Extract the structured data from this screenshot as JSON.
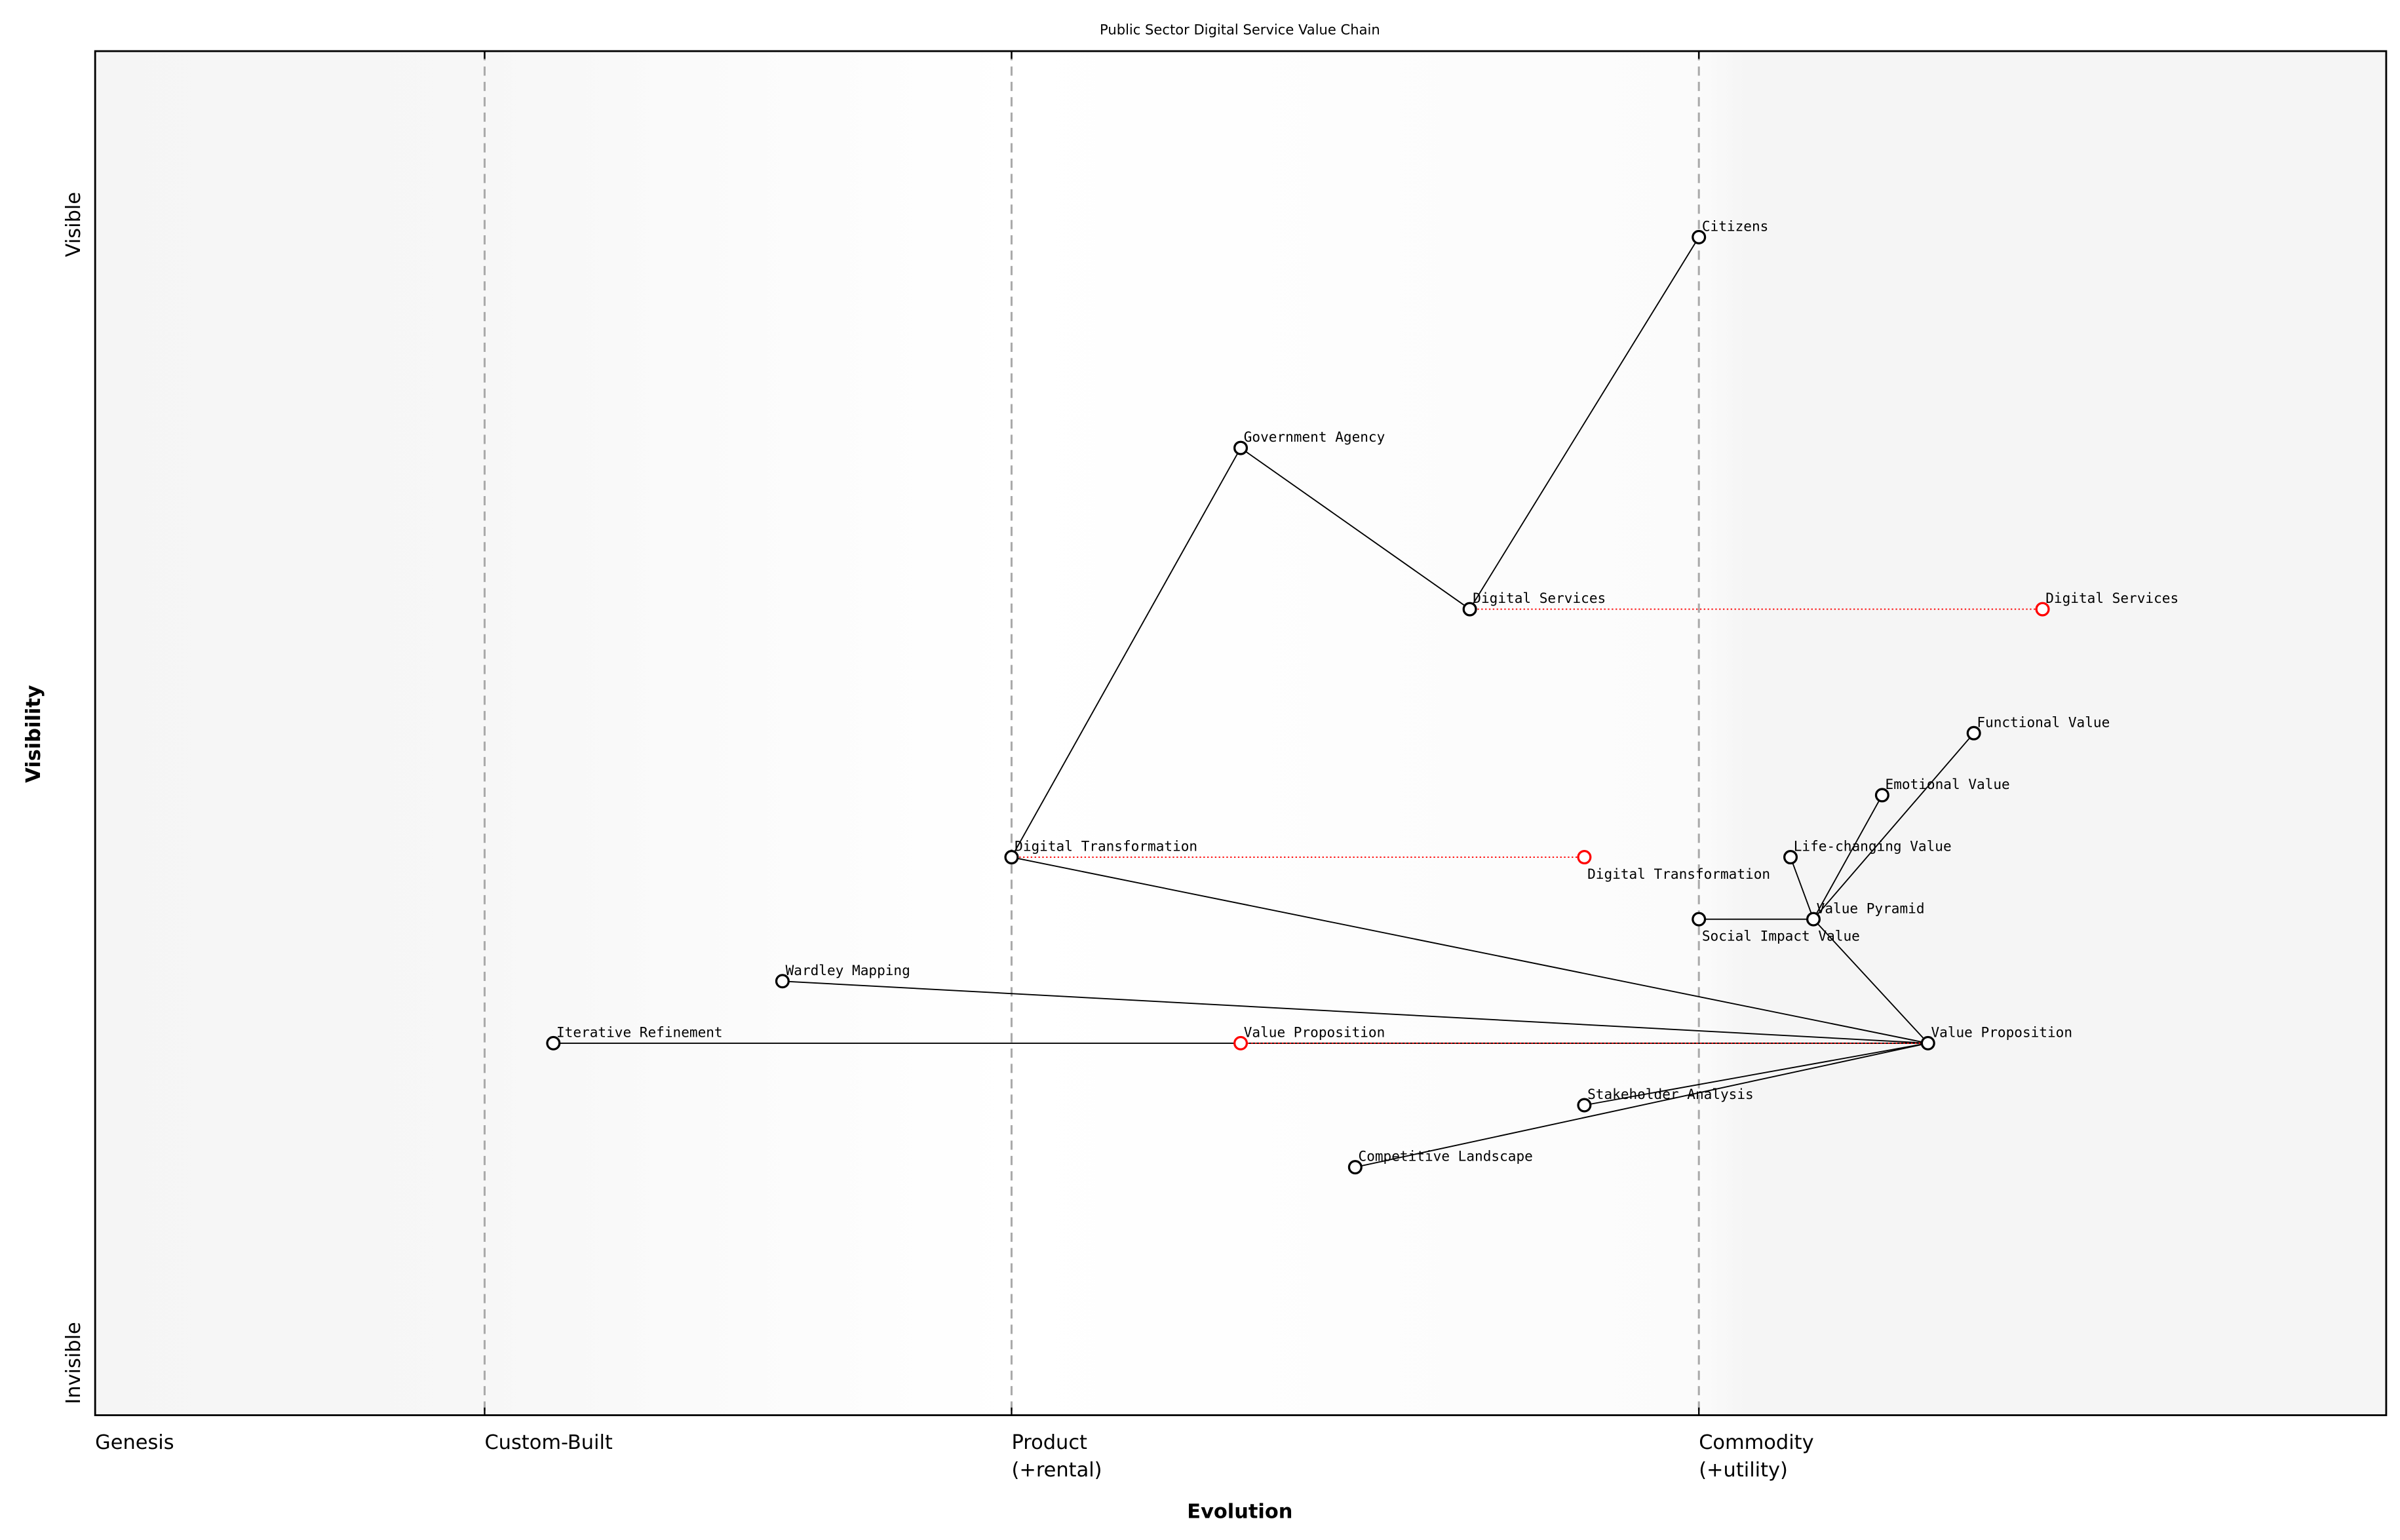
{
  "chart_data": {
    "type": "scatter",
    "title": "Public Sector Digital Service Value Chain",
    "xlabel": "Evolution",
    "ylabel": "Visibility",
    "xlim": [
      0,
      1
    ],
    "ylim": [
      0,
      1.1
    ],
    "grid": false,
    "x_stage_labels": [
      {
        "label": "Genesis",
        "x": 0.0
      },
      {
        "label": "Custom-Built",
        "x": 0.17
      },
      {
        "label": "Product\n(+rental)",
        "x": 0.4
      },
      {
        "label": "Commodity\n(+utility)",
        "x": 0.7
      }
    ],
    "y_labels": {
      "top": "Visible",
      "bottom": "Invisible"
    },
    "colors": {
      "component": "#000000",
      "evolved": "#ff0000",
      "stage_line": "#aaaaaa",
      "background_edge": "#f5f5f5"
    },
    "components": [
      {
        "name": "Citizens",
        "x": 0.7,
        "y": 0.95
      },
      {
        "name": "Government Agency",
        "x": 0.5,
        "y": 0.78
      },
      {
        "name": "Digital Services",
        "x": 0.6,
        "y": 0.65
      },
      {
        "name": "Functional Value",
        "x": 0.82,
        "y": 0.55
      },
      {
        "name": "Emotional Value",
        "x": 0.78,
        "y": 0.5
      },
      {
        "name": "Life-changing Value",
        "x": 0.74,
        "y": 0.45
      },
      {
        "name": "Digital Transformation",
        "x": 0.4,
        "y": 0.45
      },
      {
        "name": "Social Impact Value",
        "x": 0.7,
        "y": 0.4
      },
      {
        "name": "Value Pyramid",
        "x": 0.75,
        "y": 0.4
      },
      {
        "name": "Wardley Mapping",
        "x": 0.3,
        "y": 0.35
      },
      {
        "name": "Iterative Refinement",
        "x": 0.2,
        "y": 0.3
      },
      {
        "name": "Value Proposition",
        "x": 0.8,
        "y": 0.3
      },
      {
        "name": "Stakeholder Analysis",
        "x": 0.65,
        "y": 0.25
      },
      {
        "name": "Competitive Landscape",
        "x": 0.55,
        "y": 0.2
      }
    ],
    "links": [
      [
        "Citizens",
        "Digital Services"
      ],
      [
        "Government Agency",
        "Digital Services"
      ],
      [
        "Government Agency",
        "Digital Transformation"
      ],
      [
        "Digital Transformation",
        "Value Proposition"
      ],
      [
        "Wardley Mapping",
        "Value Proposition"
      ],
      [
        "Iterative Refinement",
        "Value Proposition"
      ],
      [
        "Value Proposition",
        "Stakeholder Analysis"
      ],
      [
        "Value Proposition",
        "Competitive Landscape"
      ],
      [
        "Value Proposition",
        "Value Pyramid"
      ],
      [
        "Value Pyramid",
        "Social Impact Value"
      ],
      [
        "Value Pyramid",
        "Life-changing Value"
      ],
      [
        "Value Pyramid",
        "Emotional Value"
      ],
      [
        "Value Pyramid",
        "Functional Value"
      ]
    ],
    "evolutions": [
      {
        "name": "Digital Services",
        "from": 0.6,
        "to": 0.85,
        "y": 0.65
      },
      {
        "name": "Digital Transformation",
        "from": 0.4,
        "to": 0.65,
        "y": 0.45
      },
      {
        "name": "Value Proposition",
        "from": 0.8,
        "to": 0.5,
        "y": 0.3
      }
    ]
  }
}
